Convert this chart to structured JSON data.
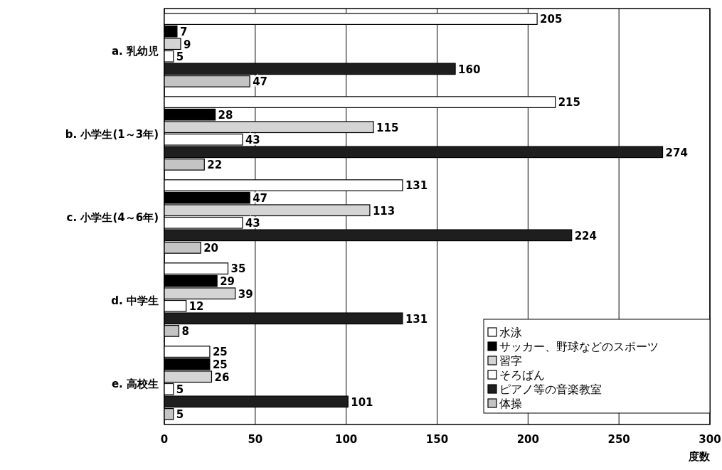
{
  "chart_data": {
    "type": "bar",
    "orientation": "horizontal",
    "categories": [
      "a. 乳幼児",
      "b. 小学生(1～3年)",
      "c. 小学生(4～6年)",
      "d. 中学生",
      "e. 高校生"
    ],
    "series": [
      {
        "name": "水泳",
        "color": "#ffffff",
        "values": [
          205,
          215,
          131,
          35,
          25
        ]
      },
      {
        "name": "サッカー、野球などのスポーツ",
        "color": "#000000",
        "values": [
          7,
          28,
          47,
          29,
          25
        ]
      },
      {
        "name": "習字",
        "color": "#d4d4d4",
        "values": [
          9,
          115,
          113,
          39,
          26
        ]
      },
      {
        "name": "そろばん",
        "color": "#ffffff",
        "values": [
          5,
          43,
          43,
          12,
          5
        ]
      },
      {
        "name": "ピアノ等の音楽教室",
        "color": "#1e1e1e",
        "values": [
          160,
          274,
          224,
          131,
          101
        ]
      },
      {
        "name": "体操",
        "color": "#c4c4c4",
        "values": [
          47,
          22,
          20,
          8,
          5
        ]
      }
    ],
    "xlim": [
      0,
      300
    ],
    "xticks": [
      0,
      50,
      100,
      150,
      200,
      250,
      300
    ],
    "xlabel": "度数",
    "grid": "x",
    "legend": "bottom right",
    "data_labels": true
  }
}
